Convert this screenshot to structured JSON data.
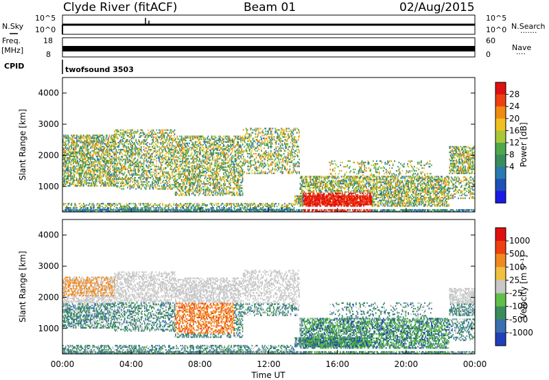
{
  "header": {
    "station": "Clyde River (fitACF)",
    "beam": "Beam 01",
    "date": "02/Aug/2015"
  },
  "strip_labels": {
    "nsky": "N.Sky",
    "nsearch": "N.Search",
    "nsearch_dots": "·······",
    "freq": "Freq.",
    "freq_unit": "[MHz]",
    "nave": "Nave",
    "nave_dots": "····",
    "cpid": "CPID",
    "program": "twofsound 3503"
  },
  "chart_data": [
    {
      "type": "line",
      "name": "noise-strip",
      "left_ticks": [
        "10^5",
        "10^0"
      ],
      "right_ticks": [
        "10^5",
        "10^0"
      ],
      "ylim": [
        1,
        100000
      ],
      "log_scale": true,
      "level": 3,
      "spike_times_ut": [
        4.8,
        5.0
      ]
    },
    {
      "type": "line",
      "name": "frequency-strip",
      "left_ticks": [
        "18",
        "8"
      ],
      "right_ticks": [
        "60",
        "0"
      ],
      "freq_mhz_range": [
        8,
        18
      ],
      "freq_mhz_level": 10
    },
    {
      "type": "heatmap",
      "name": "power-panel",
      "ylabel": "Slant Range [km]",
      "yticks": [
        "4000",
        "3000",
        "2000",
        "1000"
      ],
      "yvalues": [
        4000,
        3000,
        2000,
        1000
      ],
      "ylim": [
        180,
        4500
      ],
      "xlim_hours": [
        0,
        24
      ],
      "colorbar_label": "Power [dB]",
      "colorbar_ticks": [
        "28",
        "24",
        "20",
        "16",
        "12",
        "8",
        "4"
      ],
      "colorbar_values": [
        28,
        24,
        20,
        16,
        12,
        8,
        4
      ],
      "colorbar_range": [
        0,
        32
      ],
      "colors": [
        "#1a1ae6",
        "#1f4fb8",
        "#2a7ab0",
        "#3a8c5c",
        "#4fa84a",
        "#a8c83a",
        "#f0c020",
        "#f08a10",
        "#ef4010",
        "#e01010"
      ]
    },
    {
      "type": "heatmap",
      "name": "velocity-panel",
      "ylabel": "Slant Range [km]",
      "yticks": [
        "4000",
        "3000",
        "2000",
        "1000"
      ],
      "yvalues": [
        4000,
        3000,
        2000,
        1000
      ],
      "ylim": [
        180,
        4500
      ],
      "xlim_hours": [
        0,
        24
      ],
      "xlabel": "Time UT",
      "xticks": [
        "00:00",
        "04:00",
        "08:00",
        "12:00",
        "16:00",
        "20:00",
        "00:00"
      ],
      "xvalues": [
        0,
        4,
        8,
        12,
        16,
        20,
        24
      ],
      "colorbar_label": "Velocity [m s⁻¹]",
      "colorbar_ticks": [
        "1000",
        "500",
        "100",
        "25",
        "-25",
        "-100",
        "-500",
        "-1000"
      ],
      "colors": [
        "#2040b8",
        "#3a6fb0",
        "#3a8c5c",
        "#5fc048",
        "#c8c8c8",
        "#f0c040",
        "#f08a20",
        "#ef4010",
        "#e01010"
      ]
    }
  ]
}
